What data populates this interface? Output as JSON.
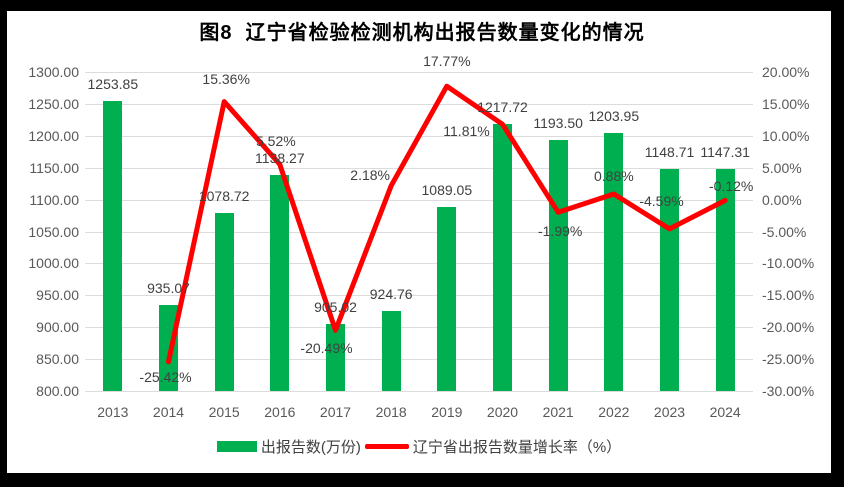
{
  "chart_data": {
    "type": "combo-bar-line",
    "title": "图8  辽宁省检验检测机构出报告数量变化的情况",
    "categories": [
      "2013",
      "2014",
      "2015",
      "2016",
      "2017",
      "2018",
      "2019",
      "2020",
      "2021",
      "2022",
      "2023",
      "2024"
    ],
    "series": [
      {
        "name": "出报告数(万份)",
        "type": "bar",
        "axis": "left",
        "color": "#00B050",
        "values": [
          1253.85,
          935.07,
          1078.72,
          1138.27,
          905.02,
          924.76,
          1089.05,
          1217.72,
          1193.5,
          1203.95,
          1148.71,
          1147.31
        ],
        "data_labels": [
          "1253.85",
          "935.07",
          "1078.72",
          "1138.27",
          "905.02",
          "924.76",
          "1089.05",
          "1217.72",
          "1193.50",
          "1203.95",
          "1148.71",
          "1147.31"
        ]
      },
      {
        "name": "辽宁省出报告数量增长率（%）",
        "type": "line",
        "axis": "right",
        "color": "#FF0000",
        "values": [
          null,
          -25.42,
          15.36,
          5.52,
          -20.49,
          2.18,
          17.77,
          11.81,
          -1.99,
          0.88,
          -4.59,
          -0.12
        ],
        "data_labels": [
          null,
          "-25.42%",
          "15.36%",
          "5.52%",
          "-20.49%",
          "2.18%",
          "17.77%",
          "11.81%",
          "-1.99%",
          "0.88%",
          "-4.59%",
          "-0.12%"
        ]
      }
    ],
    "left_axis": {
      "min": 800,
      "max": 1300,
      "step": 50,
      "tick_labels": [
        "1300.00",
        "1250.00",
        "1200.00",
        "1150.00",
        "1100.00",
        "1050.00",
        "1000.00",
        "950.00",
        "900.00",
        "850.00",
        "800.00"
      ]
    },
    "right_axis": {
      "min": -30,
      "max": 20,
      "step": 5,
      "tick_labels": [
        "20.00%",
        "15.00%",
        "10.00%",
        "5.00%",
        "0.00%",
        "-5.00%",
        "-10.00%",
        "-15.00%",
        "-20.00%",
        "-25.00%",
        "-30.00%"
      ]
    },
    "gridlines": true,
    "legend_position": "bottom",
    "colors": {
      "bar": "#00B050",
      "line": "#FF0000",
      "grid": "#DCDCDC",
      "axis_text": "#595959",
      "data_label_text": "#404040",
      "title_text": "#000000",
      "frame": "#000000"
    }
  },
  "legend": {
    "items": [
      {
        "label": "出报告数(万份)",
        "marker": "bar"
      },
      {
        "label": "辽宁省出报告数量增长率（%）",
        "marker": "line"
      }
    ]
  }
}
